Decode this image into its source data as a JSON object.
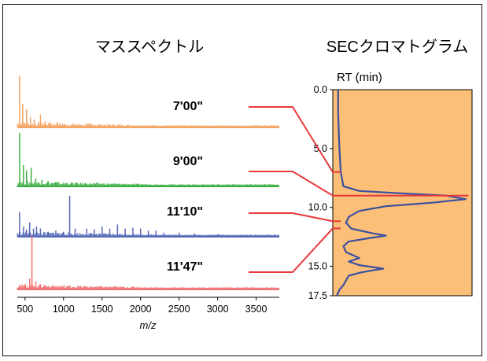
{
  "titles": {
    "mass": "マススペクトル",
    "sec": "SECクロマトグラム"
  },
  "chart_data": [
    {
      "type": "line",
      "title": "マススペクトル",
      "xlabel": "m/z",
      "ylabel": "",
      "xlim": [
        400,
        3800
      ],
      "x_ticks": [
        "500",
        "1000",
        "1500",
        "2000",
        "2500",
        "3000",
        "3500"
      ],
      "series": [
        {
          "name": "7'00\"",
          "color": "#f4a460",
          "peaks": [
            [
              430,
              1.0
            ],
            [
              470,
              0.45
            ],
            [
              520,
              0.35
            ],
            [
              570,
              0.2
            ],
            [
              620,
              0.15
            ],
            [
              700,
              0.25
            ],
            [
              760,
              0.12
            ],
            [
              830,
              0.1
            ],
            [
              920,
              0.1
            ],
            [
              1000,
              0.05
            ],
            [
              1200,
              0.05
            ]
          ]
        },
        {
          "name": "9'00\"",
          "color": "#3cb043",
          "peaks": [
            [
              430,
              1.0
            ],
            [
              480,
              0.4
            ],
            [
              520,
              0.3
            ],
            [
              580,
              0.35
            ],
            [
              640,
              0.15
            ],
            [
              720,
              0.12
            ],
            [
              800,
              0.1
            ],
            [
              900,
              0.08
            ],
            [
              1100,
              0.06
            ],
            [
              1300,
              0.05
            ]
          ]
        },
        {
          "name": "11'10\"",
          "color": "#5568b8",
          "peaks": [
            [
              430,
              0.6
            ],
            [
              480,
              0.25
            ],
            [
              520,
              0.18
            ],
            [
              560,
              0.35
            ],
            [
              610,
              0.2
            ],
            [
              650,
              0.25
            ],
            [
              700,
              0.2
            ],
            [
              800,
              0.12
            ],
            [
              900,
              0.15
            ],
            [
              1000,
              0.12
            ],
            [
              1080,
              1.0
            ],
            [
              1150,
              0.2
            ],
            [
              1300,
              0.2
            ],
            [
              1400,
              0.18
            ],
            [
              1500,
              0.25
            ],
            [
              1600,
              0.2
            ],
            [
              1700,
              0.3
            ],
            [
              1800,
              0.2
            ],
            [
              1900,
              0.22
            ],
            [
              2000,
              0.2
            ],
            [
              2100,
              0.15
            ],
            [
              2200,
              0.15
            ],
            [
              2300,
              0.1
            ],
            [
              2500,
              0.1
            ],
            [
              2700,
              0.08
            ],
            [
              3000,
              0.06
            ]
          ]
        },
        {
          "name": "11'47\"",
          "color": "#ef6f6f",
          "peaks": [
            [
              430,
              0.08
            ],
            [
              500,
              0.1
            ],
            [
              560,
              0.2
            ],
            [
              590,
              1.0
            ],
            [
              640,
              0.15
            ],
            [
              700,
              0.1
            ],
            [
              760,
              0.08
            ],
            [
              850,
              0.05
            ]
          ]
        }
      ]
    },
    {
      "type": "line",
      "title": "SECクロマトグラム",
      "ylabel": "RT (min)",
      "ylim": [
        0.0,
        17.5
      ],
      "y_ticks": [
        "0.0",
        "5.0",
        "10.0",
        "15.0",
        "17.5"
      ],
      "fill_color": "#fbbf78",
      "line_color": "#3c4fa0",
      "points": [
        [
          0.0,
          0.04
        ],
        [
          2.0,
          0.04
        ],
        [
          5.0,
          0.05
        ],
        [
          7.0,
          0.06
        ],
        [
          8.2,
          0.08
        ],
        [
          8.6,
          0.2
        ],
        [
          8.8,
          0.5
        ],
        [
          9.0,
          0.85
        ],
        [
          9.3,
          1.0
        ],
        [
          9.6,
          0.75
        ],
        [
          9.9,
          0.4
        ],
        [
          10.3,
          0.2
        ],
        [
          10.8,
          0.12
        ],
        [
          11.3,
          0.1
        ],
        [
          11.8,
          0.14
        ],
        [
          12.2,
          0.3
        ],
        [
          12.4,
          0.4
        ],
        [
          12.6,
          0.28
        ],
        [
          12.9,
          0.12
        ],
        [
          13.3,
          0.08
        ],
        [
          13.8,
          0.1
        ],
        [
          14.3,
          0.2
        ],
        [
          14.6,
          0.12
        ],
        [
          14.9,
          0.2
        ],
        [
          15.2,
          0.38
        ],
        [
          15.5,
          0.22
        ],
        [
          15.8,
          0.12
        ],
        [
          16.2,
          0.1
        ],
        [
          16.6,
          0.08
        ],
        [
          17.0,
          0.05
        ],
        [
          17.5,
          0.03
        ]
      ],
      "fractions": [
        {
          "label": "7'00\"",
          "rt": 7.0
        },
        {
          "label": "9'00\"",
          "rt": 9.0
        },
        {
          "label": "11'10\"",
          "rt": 11.167
        },
        {
          "label": "11'47\"",
          "rt": 11.783
        }
      ],
      "connector_color": "#e8393a"
    }
  ]
}
